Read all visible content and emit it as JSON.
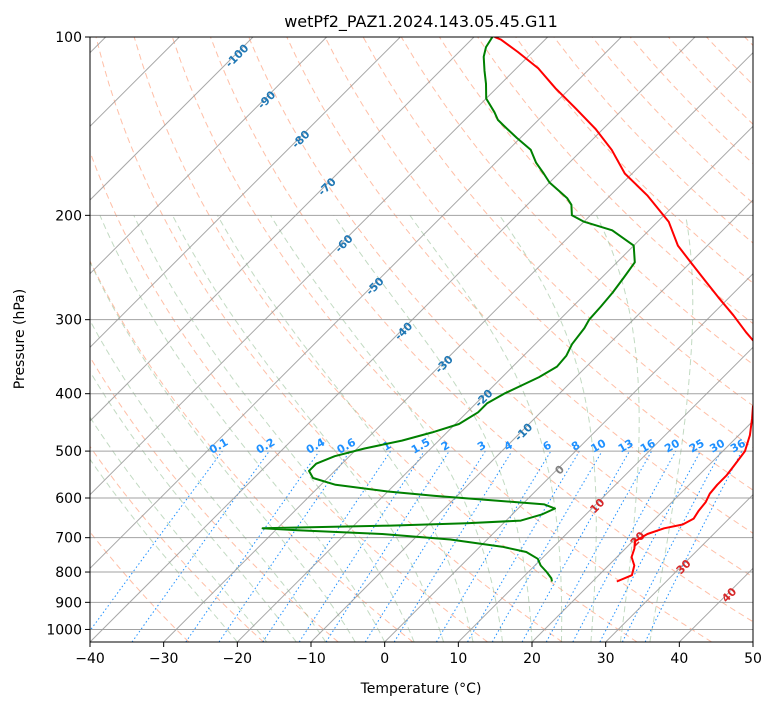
{
  "chart_data": {
    "type": "line",
    "title": "wetPf2_PAZ1.2024.143.05.45.G11",
    "xlabel": "Temperature (°C)",
    "ylabel": "Pressure (hPa)",
    "xlim": [
      -40,
      50
    ],
    "ylim_hpa": [
      1050,
      100
    ],
    "y_scale": "log",
    "grid": true,
    "x_ticks": [
      "−40",
      "−30",
      "−20",
      "−10",
      "0",
      "10",
      "20",
      "30",
      "40",
      "50"
    ],
    "y_ticks": [
      {
        "p": 100,
        "label": "100"
      },
      {
        "p": 200,
        "label": "200"
      },
      {
        "p": 300,
        "label": "300"
      },
      {
        "p": 400,
        "label": "400"
      },
      {
        "p": 500,
        "label": "500"
      },
      {
        "p": 600,
        "label": "600"
      },
      {
        "p": 700,
        "label": "700"
      },
      {
        "p": 800,
        "label": "800"
      },
      {
        "p": 900,
        "label": "900"
      },
      {
        "p": 1000,
        "label": "1000"
      }
    ],
    "skew_deg": 45,
    "colors": {
      "temperature": "#ff0000",
      "dewpoint": "#008000",
      "isotherm": "#999999",
      "dry_adiabat": "#ff7f50",
      "moist_adiabat": "#8fbc8f",
      "mixing_ratio": "#1e90ff",
      "isotherm_labels": "#1f77b4",
      "zero_label": "#808080",
      "warm_labels": "#d62728"
    },
    "series": [
      {
        "key": "temperature",
        "points": [
          [
            23.3,
            830
          ],
          [
            24.5,
            810
          ],
          [
            23.5,
            780
          ],
          [
            22,
            755
          ],
          [
            21.2,
            730
          ],
          [
            20.3,
            710
          ],
          [
            21,
            690
          ],
          [
            22.5,
            675
          ],
          [
            24.5,
            665
          ],
          [
            25.2,
            650
          ],
          [
            24.8,
            630
          ],
          [
            24.6,
            610
          ],
          [
            24,
            590
          ],
          [
            23.8,
            570
          ],
          [
            23.8,
            550
          ],
          [
            23.5,
            530
          ],
          [
            23,
            500
          ],
          [
            21.5,
            470
          ],
          [
            19.5,
            440
          ],
          [
            18,
            420
          ],
          [
            17.2,
            400
          ],
          [
            16,
            375
          ],
          [
            14,
            355
          ],
          [
            11,
            335
          ],
          [
            7,
            315
          ],
          [
            3,
            295
          ],
          [
            -1.5,
            275
          ],
          [
            -5.5,
            258
          ],
          [
            -10,
            240
          ],
          [
            -14,
            225
          ],
          [
            -18.5,
            205
          ],
          [
            -25,
            185
          ],
          [
            -31,
            170
          ],
          [
            -36,
            155
          ],
          [
            -41,
            143
          ],
          [
            -46.5,
            132
          ],
          [
            -52,
            122
          ],
          [
            -57,
            113
          ],
          [
            -62,
            106
          ],
          [
            -66,
            101
          ],
          [
            -67.2,
            100
          ]
        ]
      },
      {
        "key": "dewpoint",
        "points": [
          [
            14.5,
            830
          ],
          [
            14,
            820
          ],
          [
            12.5,
            800
          ],
          [
            10.8,
            780
          ],
          [
            9.5,
            760
          ],
          [
            7,
            740
          ],
          [
            3,
            725
          ],
          [
            -5,
            705
          ],
          [
            -15,
            690
          ],
          [
            -27,
            680
          ],
          [
            -32,
            675
          ],
          [
            -15,
            668
          ],
          [
            -5,
            662
          ],
          [
            2,
            655
          ],
          [
            4,
            640
          ],
          [
            5,
            625
          ],
          [
            3,
            615
          ],
          [
            -5,
            605
          ],
          [
            -13,
            595
          ],
          [
            -20,
            585
          ],
          [
            -28,
            570
          ],
          [
            -32,
            555
          ],
          [
            -33.5,
            540
          ],
          [
            -33.5,
            525
          ],
          [
            -32,
            510
          ],
          [
            -29,
            495
          ],
          [
            -25,
            480
          ],
          [
            -22,
            465
          ],
          [
            -19.5,
            450
          ],
          [
            -18.5,
            430
          ],
          [
            -18.5,
            415
          ],
          [
            -17.5,
            400
          ],
          [
            -16,
            385
          ],
          [
            -15,
            375
          ],
          [
            -14,
            360
          ],
          [
            -14.2,
            345
          ],
          [
            -15,
            330
          ],
          [
            -15.5,
            310
          ],
          [
            -16,
            300
          ],
          [
            -16.2,
            285
          ],
          [
            -16.5,
            270
          ],
          [
            -17,
            255
          ],
          [
            -17.6,
            240
          ],
          [
            -20,
            225
          ],
          [
            -25,
            212
          ],
          [
            -30,
            205
          ],
          [
            -32.5,
            200
          ],
          [
            -34,
            192
          ],
          [
            -35.5,
            187
          ],
          [
            -37.5,
            182
          ],
          [
            -40,
            176
          ],
          [
            -42,
            170
          ],
          [
            -44.5,
            163
          ],
          [
            -47,
            155
          ],
          [
            -50.5,
            148
          ],
          [
            -54,
            141
          ],
          [
            -55.5,
            138
          ],
          [
            -57,
            134
          ],
          [
            -60,
            127
          ],
          [
            -62,
            120
          ],
          [
            -64,
            114
          ],
          [
            -66,
            108
          ],
          [
            -67,
            104
          ],
          [
            -67.5,
            100
          ]
        ]
      }
    ],
    "mixing_ratio_labels": [
      "0.1",
      "0.2",
      "0.4",
      "0.6",
      "1",
      "1.5",
      "2",
      "3",
      "4",
      "6",
      "8",
      "10",
      "13",
      "16",
      "20",
      "25",
      "30",
      "36"
    ],
    "isotherm_labels": [
      "-100",
      "-90",
      "-80",
      "-70",
      "-60",
      "-50",
      "-40",
      "-30",
      "-20",
      "-10",
      "0",
      "10",
      "20",
      "30",
      "40"
    ]
  }
}
